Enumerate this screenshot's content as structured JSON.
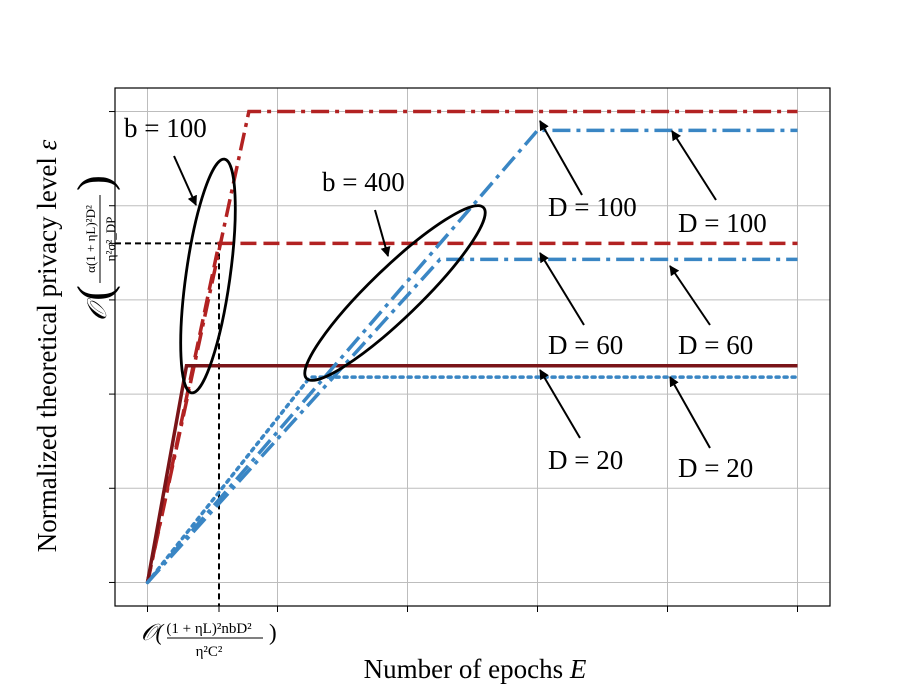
{
  "chart_data": {
    "type": "line",
    "xlabel": "Number of epochs",
    "xlabel_var": "E",
    "ylabel": "Normalized theoretical privacy level",
    "ylabel_var": "ε",
    "y_tick_expression": "O(α(1+ηL)²D² / η²σ²_DP)",
    "y_tick_value": 3.6,
    "x_tick_expression": "O((1+ηL)²nbD² / η²C²)",
    "x_tick_value": 0.55,
    "xlim": [
      -0.25,
      5.25
    ],
    "ylim": [
      -0.25,
      5.25
    ],
    "xticks": [
      0,
      2,
      3,
      4,
      5
    ],
    "yticks": [
      0,
      1,
      2,
      3,
      4,
      5
    ],
    "grid": true,
    "colors": {
      "b100_large": "#b22222",
      "b100_small": "#7a1418",
      "b400": "#3a86c4",
      "grid": "#bdbdbd",
      "reference": "#000000"
    },
    "series": [
      {
        "group": "b = 100",
        "D": "D = 100",
        "style": "dashdot",
        "color": "#b22222",
        "x": [
          0,
          0.78,
          5
        ],
        "y": [
          0,
          5,
          5
        ]
      },
      {
        "group": "b = 100",
        "D": "D = 60",
        "style": "dashed",
        "color": "#b22222",
        "x": [
          0,
          0.55,
          5
        ],
        "y": [
          0,
          3.6,
          3.6
        ]
      },
      {
        "group": "b = 100",
        "D": "D = 20",
        "style": "solid",
        "color": "#7a1418",
        "x": [
          0,
          0.3,
          5
        ],
        "y": [
          0,
          2.3,
          2.3
        ]
      },
      {
        "group": "b = 400",
        "D": "D = 100",
        "style": "dashdot",
        "color": "#3a86c4",
        "x": [
          0,
          3,
          5
        ],
        "y": [
          0,
          4.8,
          4.8
        ]
      },
      {
        "group": "b = 400",
        "D": "D = 60",
        "style": "dashdot",
        "color": "#3a86c4",
        "x": [
          0,
          2.25,
          5
        ],
        "y": [
          0,
          3.43,
          3.43
        ]
      },
      {
        "group": "b = 400",
        "D": "D = 20",
        "style": "dotted",
        "color": "#3a86c4",
        "x": [
          0,
          1.25,
          5
        ],
        "y": [
          0,
          2.18,
          2.18
        ]
      }
    ],
    "annotations": {
      "b100": "b = 100",
      "b400": "b = 400",
      "d100": "D = 100",
      "d60": "D = 60",
      "d20": "D = 20"
    }
  }
}
